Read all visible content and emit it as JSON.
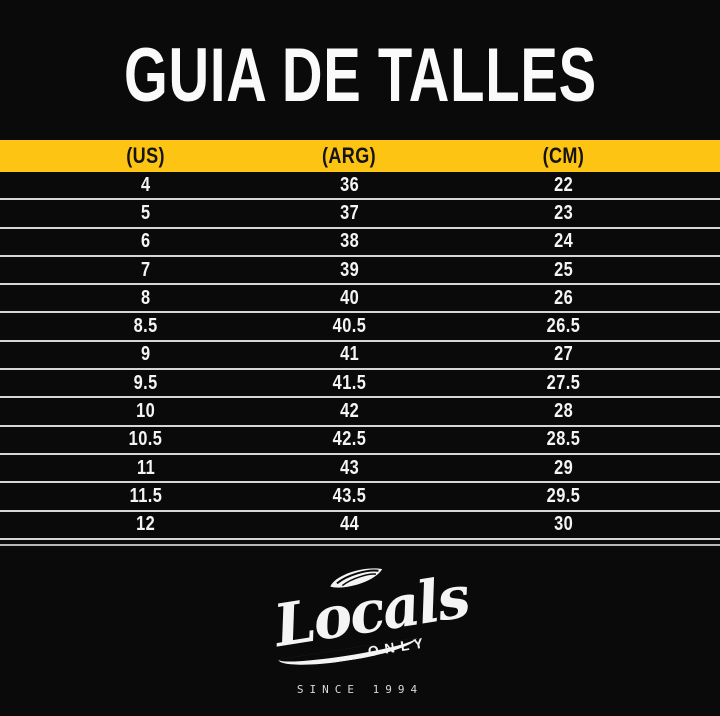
{
  "page": {
    "title": "GUIA DE TALLES"
  },
  "chart_data": {
    "type": "table",
    "title": "GUIA DE TALLES",
    "columns": [
      "(US)",
      "(ARG)",
      "(CM)"
    ],
    "rows": [
      [
        "4",
        "36",
        "22"
      ],
      [
        "5",
        "37",
        "23"
      ],
      [
        "6",
        "38",
        "24"
      ],
      [
        "7",
        "39",
        "25"
      ],
      [
        "8",
        "40",
        "26"
      ],
      [
        "8.5",
        "40.5",
        "26.5"
      ],
      [
        "9",
        "41",
        "27"
      ],
      [
        "9.5",
        "41.5",
        "27.5"
      ],
      [
        "10",
        "42",
        "28"
      ],
      [
        "10.5",
        "42.5",
        "28.5"
      ],
      [
        "11",
        "43",
        "29"
      ],
      [
        "11.5",
        "43.5",
        "29.5"
      ],
      [
        "12",
        "44",
        "30"
      ]
    ]
  },
  "footer": {
    "brand": "Locals",
    "brand_sub": "ONLY",
    "since": "SINCE 1994"
  },
  "colors": {
    "background": "#0a0a0a",
    "header_bg": "#fdc413",
    "header_text": "#141414",
    "row_text": "#f4f4f4",
    "separator": "#d6d6d6"
  }
}
